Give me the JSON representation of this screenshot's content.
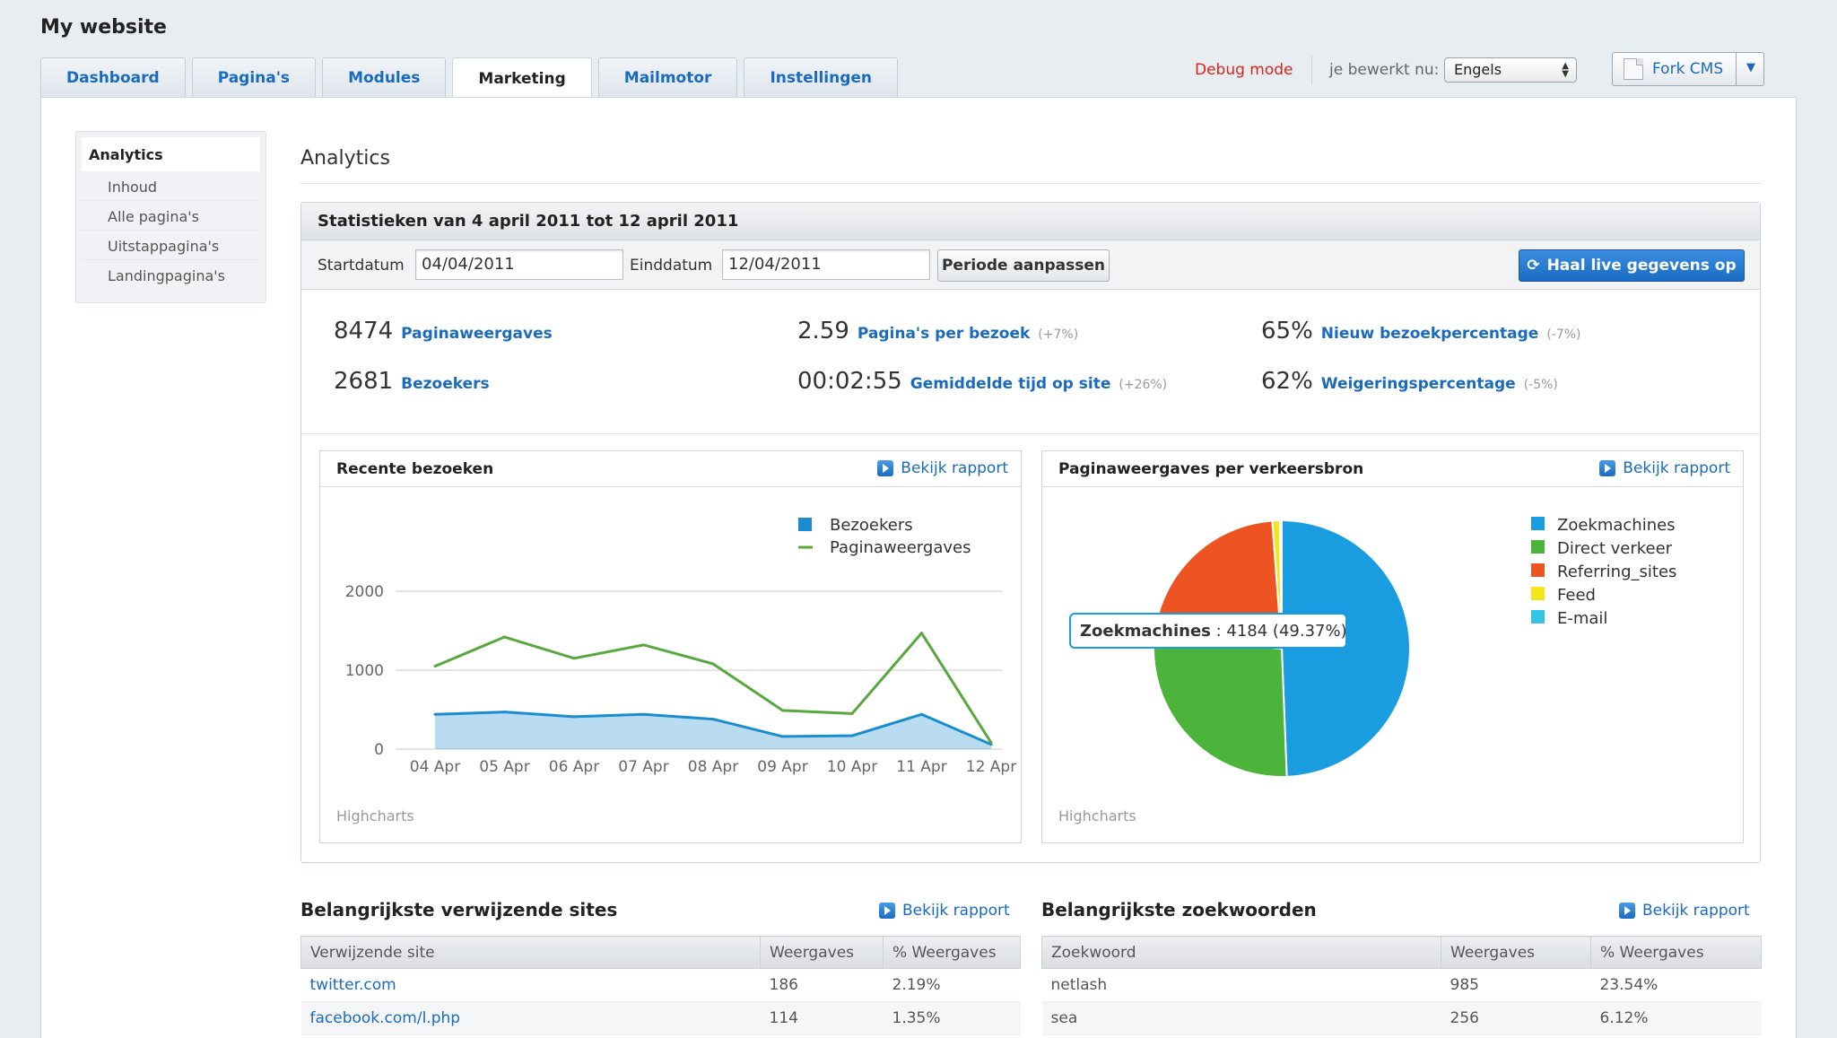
{
  "site_title": "My website",
  "tabs": [
    {
      "label": "Dashboard",
      "active": false
    },
    {
      "label": "Pagina's",
      "active": false
    },
    {
      "label": "Modules",
      "active": false
    },
    {
      "label": "Marketing",
      "active": true
    },
    {
      "label": "Mailmotor",
      "active": false
    },
    {
      "label": "Instellingen",
      "active": false
    }
  ],
  "topbar": {
    "debug_mode": "Debug mode",
    "editing_label": "je bewerkt nu:",
    "language": "Engels",
    "user_button": "Fork CMS"
  },
  "subnav": {
    "heading": "Analytics",
    "items": [
      "Inhoud",
      "Alle pagina's",
      "Uitstappagina's",
      "Landingpagina's"
    ]
  },
  "page_title": "Analytics",
  "stats": {
    "header": "Statistieken van 4 april 2011 tot 12 april 2011",
    "start_label": "Startdatum",
    "start_value": "04/04/2011",
    "end_label": "Einddatum",
    "end_value": "12/04/2011",
    "period_button": "Periode aanpassen",
    "live_button": "Haal live gegevens op",
    "metrics": [
      {
        "value": "8474",
        "label": "Paginaweergaves",
        "change": ""
      },
      {
        "value": "2.59",
        "label": "Pagina's per bezoek",
        "change": "(+7%)"
      },
      {
        "value": "65%",
        "label": "Nieuw bezoekpercentage",
        "change": "(-7%)"
      },
      {
        "value": "2681",
        "label": "Bezoekers",
        "change": ""
      },
      {
        "value": "00:02:55",
        "label": "Gemiddelde tijd op site",
        "change": "(+26%)"
      },
      {
        "value": "62%",
        "label": "Weigeringspercentage",
        "change": "(-5%)"
      }
    ]
  },
  "report_link": "Bekijk rapport",
  "chart_credit": "Highcharts",
  "chart_data": [
    {
      "type": "line",
      "title": "Recente bezoeken",
      "categories": [
        "04 Apr",
        "05 Apr",
        "06 Apr",
        "07 Apr",
        "08 Apr",
        "09 Apr",
        "10 Apr",
        "11 Apr",
        "12 Apr"
      ],
      "yticks": [
        0,
        1000,
        2000
      ],
      "ylim": [
        0,
        2000
      ],
      "legend_position": "top-right",
      "grid": true,
      "series": [
        {
          "name": "Bezoekers",
          "color": "#1a8ccf",
          "style": "area",
          "values": [
            440,
            470,
            410,
            440,
            380,
            160,
            170,
            440,
            60
          ]
        },
        {
          "name": "Paginaweergaves",
          "color": "#58a83e",
          "style": "line",
          "values": [
            1050,
            1420,
            1150,
            1320,
            1080,
            490,
            450,
            1470,
            80
          ]
        }
      ]
    },
    {
      "type": "pie",
      "title": "Paginaweergaves per verkeersbron",
      "legend_position": "top-right",
      "slices": [
        {
          "name": "Zoekmachines",
          "value": 4184,
          "pct": 49.37,
          "color": "#1a9de0"
        },
        {
          "name": "Direct verkeer",
          "value": 2290,
          "pct": 27.02,
          "color": "#4cb43a"
        },
        {
          "name": "Referring_sites",
          "value": 1900,
          "pct": 22.42,
          "color": "#ee5422"
        },
        {
          "name": "Feed",
          "value": 80,
          "pct": 0.94,
          "color": "#f3e61c"
        },
        {
          "name": "E-mail",
          "value": 20,
          "pct": 0.25,
          "color": "#35c4e8"
        }
      ],
      "tooltip": {
        "name": "Zoekmachines",
        "text": ": 4184 (49.37%)"
      }
    }
  ],
  "referrers": {
    "title": "Belangrijkste verwijzende sites",
    "columns": [
      "Verwijzende site",
      "Weergaves",
      "% Weergaves"
    ],
    "rows": [
      [
        "twitter.com",
        "186",
        "2.19%"
      ],
      [
        "facebook.com/l.php",
        "114",
        "1.35%"
      ]
    ]
  },
  "keywords": {
    "title": "Belangrijkste zoekwoorden",
    "columns": [
      "Zoekwoord",
      "Weergaves",
      "% Weergaves"
    ],
    "rows": [
      [
        "netlash",
        "985",
        "23.54%"
      ],
      [
        "sea",
        "256",
        "6.12%"
      ]
    ]
  }
}
